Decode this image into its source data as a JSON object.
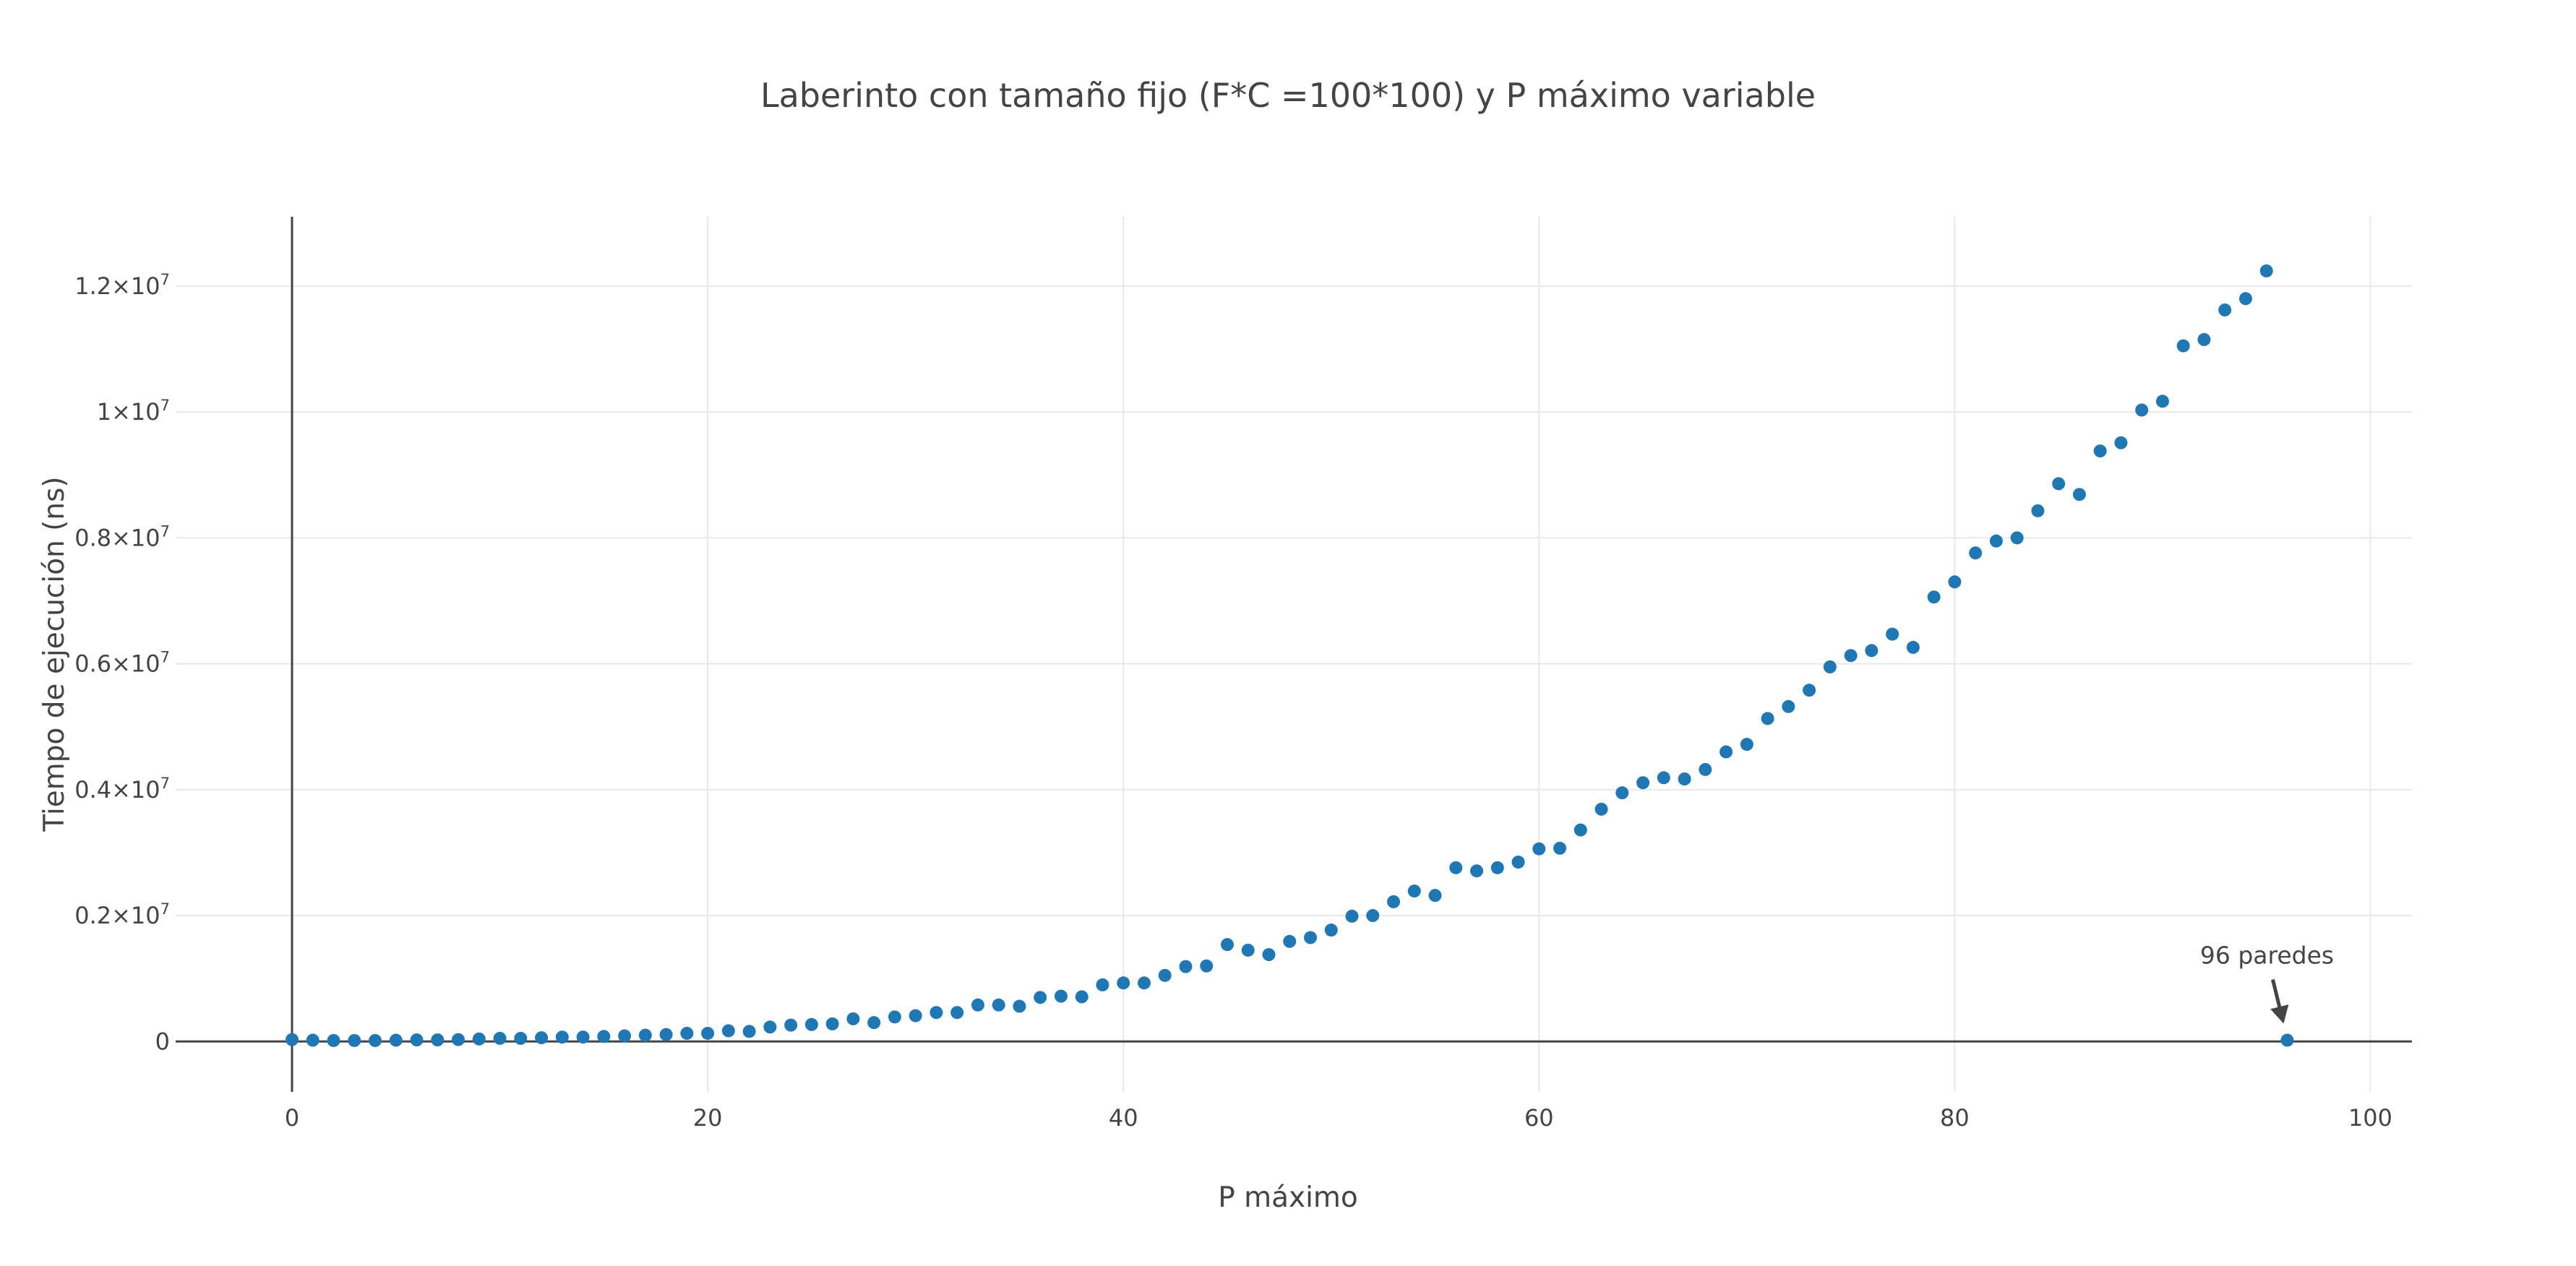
{
  "chart_data": {
    "type": "scatter",
    "title": "Laberinto con tamaño fijo (F*C =100*100) y P máximo variable",
    "xlabel": "P máximo",
    "ylabel": "Tiempo  de ejecución (ns)",
    "xlim": [
      -5.6,
      102
    ],
    "ylim": [
      -800000,
      13100000
    ],
    "xticks": [
      0,
      20,
      40,
      60,
      80,
      100
    ],
    "yticks": [
      {
        "value": 0,
        "mantissa": "0",
        "exp": ""
      },
      {
        "value": 2000000,
        "mantissa": "0.2×10",
        "exp": "7"
      },
      {
        "value": 4000000,
        "mantissa": "0.4×10",
        "exp": "7"
      },
      {
        "value": 6000000,
        "mantissa": "0.6×10",
        "exp": "7"
      },
      {
        "value": 8000000,
        "mantissa": "0.8×10",
        "exp": "7"
      },
      {
        "value": 10000000,
        "mantissa": "1×10",
        "exp": "7"
      },
      {
        "value": 12000000,
        "mantissa": "1.2×10",
        "exp": "7"
      }
    ],
    "grid": true,
    "marker_color": "#1f77b4",
    "series": [
      {
        "x": [
          0,
          1,
          2,
          3,
          4,
          5,
          6,
          7,
          8,
          9,
          10,
          11,
          12,
          13,
          14,
          15,
          16,
          17,
          18,
          19,
          20,
          21,
          22,
          23,
          24,
          25,
          26,
          27,
          28,
          29,
          30,
          31,
          32,
          33,
          34,
          35,
          36,
          37,
          38,
          39,
          40,
          41,
          42,
          43,
          44,
          45,
          46,
          47,
          48,
          49,
          50,
          51,
          52,
          53,
          54,
          55,
          56,
          57,
          58,
          59,
          60,
          61,
          62,
          63,
          64,
          65,
          66,
          67,
          68,
          69,
          70,
          71,
          72,
          73,
          74,
          75,
          76,
          77,
          78,
          79,
          80,
          81,
          82,
          83,
          84,
          85,
          86,
          87,
          88,
          89,
          90,
          91,
          92,
          93,
          94,
          95,
          96
        ],
        "y": [
          30000,
          20000,
          15000,
          15000,
          15000,
          20000,
          25000,
          25000,
          30000,
          40000,
          50000,
          50000,
          60000,
          70000,
          70000,
          80000,
          90000,
          100000,
          110000,
          130000,
          130000,
          170000,
          160000,
          230000,
          260000,
          270000,
          280000,
          360000,
          300000,
          390000,
          410000,
          460000,
          460000,
          580000,
          580000,
          560000,
          700000,
          720000,
          710000,
          900000,
          930000,
          930000,
          1050000,
          1190000,
          1200000,
          1540000,
          1450000,
          1380000,
          1590000,
          1650000,
          1770000,
          1990000,
          2000000,
          2220000,
          2390000,
          2320000,
          2760000,
          2710000,
          2760000,
          2850000,
          3060000,
          3070000,
          3360000,
          3690000,
          3950000,
          4110000,
          4190000,
          4170000,
          4320000,
          4600000,
          4720000,
          5130000,
          5320000,
          5580000,
          5950000,
          6130000,
          6210000,
          6470000,
          6260000,
          7060000,
          7300000,
          7760000,
          7950000,
          8000000,
          8430000,
          8860000,
          8690000,
          9380000,
          9510000,
          10030000,
          10170000,
          11050000,
          11150000,
          11620000,
          11800000,
          12240000,
          20000
        ]
      }
    ],
    "annotation": {
      "text": "96 paredes",
      "x": 96,
      "y": 20000
    }
  }
}
